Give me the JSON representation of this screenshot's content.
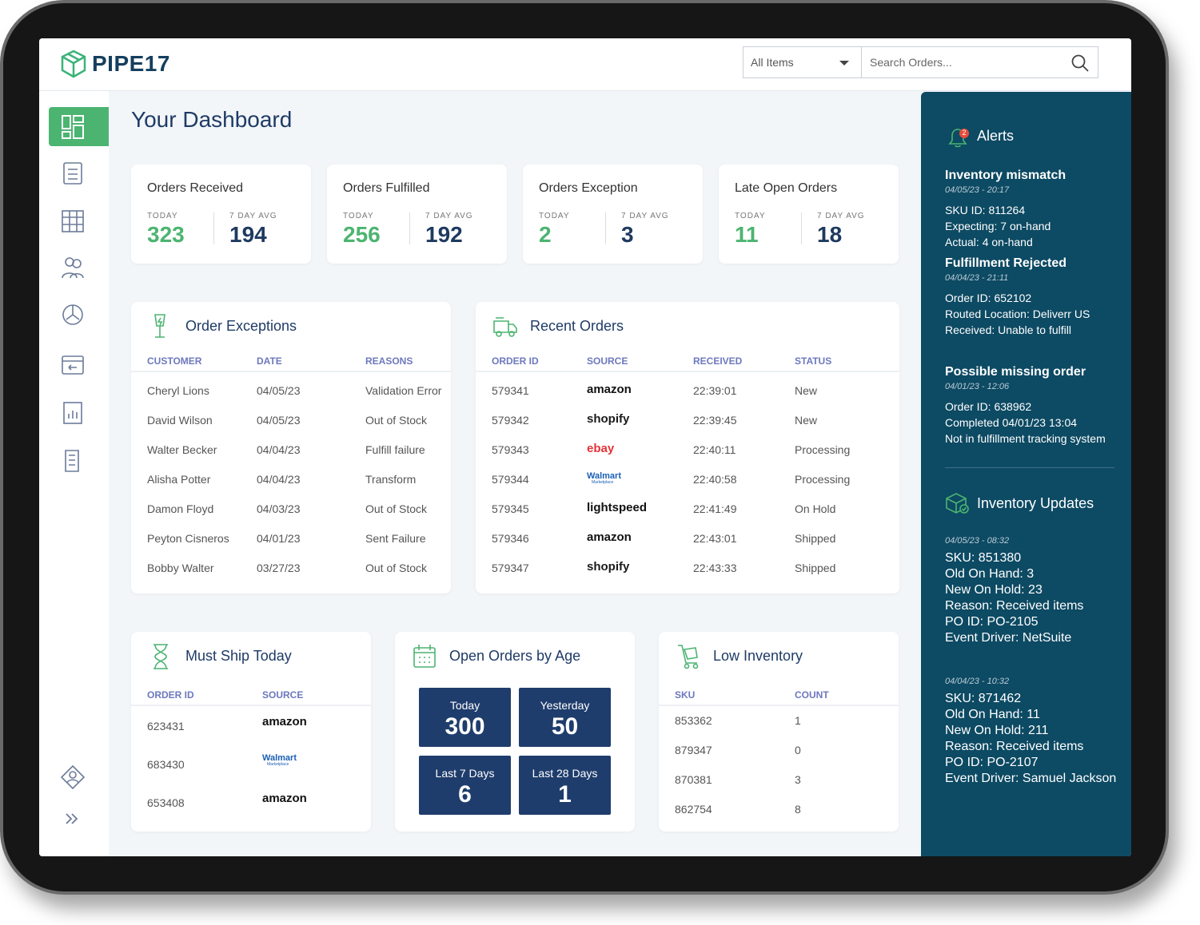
{
  "header": {
    "brand": "PIPE17",
    "filter": "All Items",
    "search": "Search Orders..."
  },
  "page_title": "Your Dashboard",
  "stats": [
    {
      "title": "Orders Received",
      "today_label": "TODAY",
      "today": 323,
      "avg_label": "7 DAY AVG",
      "avg": 194
    },
    {
      "title": "Orders Fulfilled",
      "today_label": "TODAY",
      "today": 256,
      "avg_label": "7 DAY AVG",
      "avg": 192
    },
    {
      "title": "Orders Exception",
      "today_label": "TODAY",
      "today": 2,
      "avg_label": "7 DAY AVG",
      "avg": 3
    },
    {
      "title": "Late Open Orders",
      "today_label": "TODAY",
      "today": 11,
      "avg_label": "7 DAY AVG",
      "avg": 18
    }
  ],
  "order_exceptions": {
    "title": "Order Exceptions",
    "columns": [
      "CUSTOMER",
      "DATE",
      "REASONS"
    ],
    "rows": [
      [
        "Cheryl Lions",
        "04/05/23",
        "Validation Error"
      ],
      [
        "David Wilson",
        "04/05/23",
        "Out of Stock"
      ],
      [
        "Walter Becker",
        "04/04/23",
        "Fulfill failure"
      ],
      [
        "Alisha Potter",
        "04/04/23",
        "Transform"
      ],
      [
        "Damon Floyd",
        "04/03/23",
        "Out of Stock"
      ],
      [
        "Peyton Cisneros",
        "04/01/23",
        "Sent Failure"
      ],
      [
        "Bobby Walter",
        "03/27/23",
        "Out of Stock"
      ]
    ]
  },
  "recent_orders": {
    "title": "Recent Orders",
    "columns": [
      "ORDER ID",
      "SOURCE",
      "RECEIVED",
      "STATUS"
    ],
    "rows": [
      {
        "id": "579341",
        "source": {
          "name": "amazon",
          "color": "#111111"
        },
        "received": "22:39:01",
        "status": "New"
      },
      {
        "id": "579342",
        "source": {
          "name": "shopify",
          "color": "#1a1a1a"
        },
        "received": "22:39:45",
        "status": "New"
      },
      {
        "id": "579343",
        "source": {
          "name": "ebay",
          "color": "#e53238"
        },
        "received": "22:40:11",
        "status": "Processing"
      },
      {
        "id": "579344",
        "source": {
          "name": "Walmart",
          "sub": "Marketplace",
          "color": "#1a5fb4"
        },
        "received": "22:40:58",
        "status": "Processing"
      },
      {
        "id": "579345",
        "source": {
          "name": "lightspeed",
          "color": "#111111"
        },
        "received": "22:41:49",
        "status": "On Hold"
      },
      {
        "id": "579346",
        "source": {
          "name": "amazon",
          "color": "#111111"
        },
        "received": "22:43:01",
        "status": "Shipped"
      },
      {
        "id": "579347",
        "source": {
          "name": "shopify",
          "color": "#1a1a1a"
        },
        "received": "22:43:33",
        "status": "Shipped"
      }
    ]
  },
  "must_ship": {
    "title": "Must Ship Today",
    "columns": [
      "ORDER ID",
      "SOURCE"
    ],
    "rows": [
      {
        "id": "623431",
        "source": {
          "name": "amazon",
          "color": "#111111"
        }
      },
      {
        "id": "683430",
        "source": {
          "name": "Walmart",
          "sub": "Marketplace",
          "color": "#1a5fb4"
        }
      },
      {
        "id": "653408",
        "source": {
          "name": "amazon",
          "color": "#111111"
        }
      }
    ]
  },
  "open_orders": {
    "title": "Open Orders by Age",
    "tiles": [
      {
        "label": "Today",
        "value": 300
      },
      {
        "label": "Yesterday",
        "value": 50
      },
      {
        "label": "Last 7 Days",
        "value": 6
      },
      {
        "label": "Last 28 Days",
        "value": 1
      }
    ]
  },
  "low_inventory": {
    "title": "Low Inventory",
    "columns": [
      "SKU",
      "COUNT"
    ],
    "rows": [
      [
        "853362",
        1
      ],
      [
        "879347",
        0
      ],
      [
        "870381",
        3
      ],
      [
        "862754",
        8
      ]
    ]
  },
  "alerts": {
    "title": "Alerts",
    "badge": 2,
    "items": [
      {
        "title": "Inventory mismatch",
        "time": "04/05/23 - 20:17",
        "lines": [
          "SKU ID: 811264",
          "Expecting: 7 on-hand",
          "Actual: 4 on-hand"
        ]
      },
      {
        "title": "Fulfillment Rejected",
        "time": "04/04/23 - 21:11",
        "lines": [
          "Order ID: 652102",
          "Routed Location: Deliverr US",
          "Received: Unable to fulfill"
        ]
      },
      {
        "title": "Possible missing order",
        "time": "04/01/23 - 12:06",
        "lines": [
          "Order ID: 638962",
          "Completed 04/01/23 13:04",
          "Not in fulfillment tracking system"
        ]
      }
    ]
  },
  "inventory_updates": {
    "title": "Inventory Updates",
    "items": [
      {
        "time": "04/05/23 - 08:32",
        "lines": [
          "SKU: 851380",
          "Old On Hand: 3",
          "New On Hold: 23",
          "Reason: Received items",
          "PO ID: PO-2105",
          "Event Driver: NetSuite"
        ]
      },
      {
        "time": "04/04/23 - 10:32",
        "lines": [
          "SKU: 871462",
          "Old On Hand: 11",
          "New On Hold: 211",
          "Reason: Received items",
          "PO ID: PO-2107",
          "Event Driver: Samuel Jackson"
        ]
      }
    ]
  }
}
